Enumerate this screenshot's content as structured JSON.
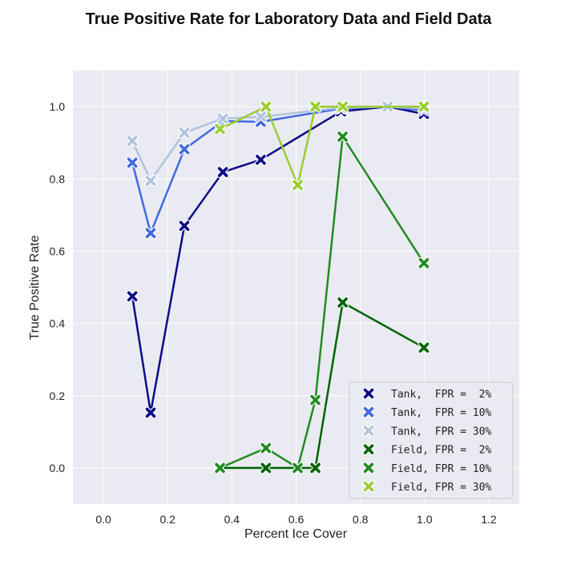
{
  "chart_data": {
    "type": "line",
    "title": "True Positive Rate for Laboratory Data and Field Data",
    "xlabel": "Percent Ice Cover",
    "ylabel": "True Positive Rate",
    "xlim": [
      -0.095,
      1.295
    ],
    "ylim": [
      -0.1,
      1.1
    ],
    "x_ticks": [
      0.0,
      0.2,
      0.4,
      0.6,
      0.8,
      1.0,
      1.2
    ],
    "x_tick_labels": [
      "0.0",
      "0.2",
      "0.4",
      "0.6",
      "0.8",
      "1.0",
      "1.2"
    ],
    "y_ticks": [
      0.0,
      0.2,
      0.4,
      0.6,
      0.8,
      1.0
    ],
    "y_tick_labels": [
      "0.0",
      "0.2",
      "0.4",
      "0.6",
      "0.8",
      "1.0"
    ],
    "grid": true,
    "legend_position": "lower-right",
    "marker": "X",
    "series": [
      {
        "name": "Tank,  FPR =  2%",
        "color": "#0b0a87",
        "points": [
          [
            0.09,
            0.475
          ],
          [
            0.147,
            0.153
          ],
          [
            0.252,
            0.67
          ],
          [
            0.372,
            0.819
          ],
          [
            0.49,
            0.853
          ],
          [
            0.74,
            0.987
          ],
          [
            0.885,
            1.0
          ],
          [
            0.998,
            0.98
          ]
        ]
      },
      {
        "name": "Tank,  FPR = 10%",
        "color": "#4169e1",
        "points": [
          [
            0.09,
            0.845
          ],
          [
            0.147,
            0.65
          ],
          [
            0.252,
            0.882
          ],
          [
            0.372,
            0.96
          ],
          [
            0.49,
            0.958
          ],
          [
            0.74,
            0.995
          ],
          [
            0.885,
            1.0
          ],
          [
            0.998,
            0.99
          ]
        ]
      },
      {
        "name": "Tank,  FPR = 30%",
        "color": "#b0c4de",
        "points": [
          [
            0.09,
            0.905
          ],
          [
            0.147,
            0.795
          ],
          [
            0.252,
            0.928
          ],
          [
            0.372,
            0.967
          ],
          [
            0.49,
            0.972
          ],
          [
            0.74,
            0.997
          ],
          [
            0.885,
            1.0
          ],
          [
            0.998,
            0.995
          ]
        ]
      },
      {
        "name": "Field, FPR =  2%",
        "color": "#006400",
        "points": [
          [
            0.363,
            0.0
          ],
          [
            0.506,
            0.0
          ],
          [
            0.605,
            0.0
          ],
          [
            0.66,
            0.0
          ],
          [
            0.745,
            0.458
          ],
          [
            0.998,
            0.333
          ]
        ]
      },
      {
        "name": "Field, FPR = 10%",
        "color": "#228b22",
        "points": [
          [
            0.363,
            0.0
          ],
          [
            0.506,
            0.055
          ],
          [
            0.605,
            0.0
          ],
          [
            0.66,
            0.188
          ],
          [
            0.745,
            0.917
          ],
          [
            0.998,
            0.567
          ]
        ]
      },
      {
        "name": "Field, FPR = 30%",
        "color": "#9acd32",
        "points": [
          [
            0.363,
            0.938
          ],
          [
            0.506,
            1.0
          ],
          [
            0.605,
            0.783
          ],
          [
            0.66,
            1.0
          ],
          [
            0.745,
            1.0
          ],
          [
            0.998,
            1.0
          ]
        ]
      }
    ]
  }
}
